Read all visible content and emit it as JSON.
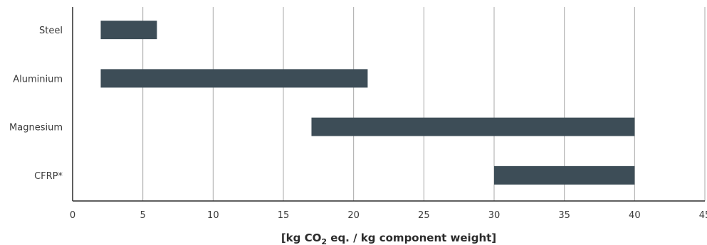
{
  "chart_data": {
    "type": "bar",
    "orientation": "horizontal",
    "range_bars": true,
    "categories": [
      "Steel",
      "Aluminium",
      "Magnesium",
      "CFRP*"
    ],
    "series": [
      {
        "ranges": [
          [
            2,
            6
          ],
          [
            2,
            21
          ],
          [
            17,
            40
          ],
          [
            30,
            40
          ]
        ]
      }
    ],
    "xlim": [
      0,
      45
    ],
    "x_ticks": [
      0,
      5,
      10,
      15,
      20,
      25,
      30,
      35,
      40,
      45
    ],
    "xlabel_parts": [
      "[kg CO",
      "2",
      " eq. / kg component weight]"
    ],
    "grid": "vertical",
    "bar_color": "#3d4d57"
  }
}
